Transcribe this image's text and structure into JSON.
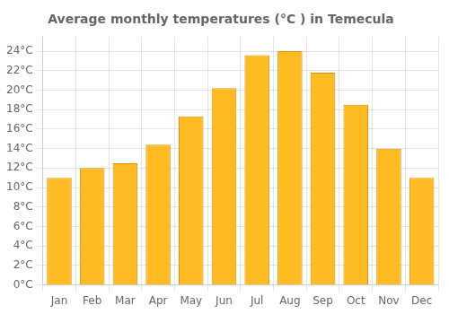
{
  "chart_data": {
    "type": "bar",
    "title": "Average monthly temperatures (°C ) in Temecula",
    "categories": [
      "Jan",
      "Feb",
      "Mar",
      "Apr",
      "May",
      "Jun",
      "Jul",
      "Aug",
      "Sep",
      "Oct",
      "Nov",
      "Dec"
    ],
    "values": [
      11.0,
      12.0,
      12.5,
      14.4,
      17.3,
      20.2,
      23.6,
      24.0,
      21.8,
      18.5,
      14.0,
      11.0
    ],
    "color": "#FFBB22",
    "ylim": [
      0,
      25.5
    ],
    "yticks": [
      {
        "value": 0,
        "label": "0°C"
      },
      {
        "value": 2,
        "label": "2°C"
      },
      {
        "value": 4,
        "label": "4°C"
      },
      {
        "value": 6,
        "label": "6°C"
      },
      {
        "value": 8,
        "label": "8°C"
      },
      {
        "value": 10,
        "label": "10°C"
      },
      {
        "value": 12,
        "label": "12°C"
      },
      {
        "value": 14,
        "label": "14°C"
      },
      {
        "value": 16,
        "label": "16°C"
      },
      {
        "value": 18,
        "label": "18°C"
      },
      {
        "value": 20,
        "label": "20°C"
      },
      {
        "value": 22,
        "label": "22°C"
      },
      {
        "value": 24,
        "label": "24°C"
      }
    ],
    "grid": true
  }
}
